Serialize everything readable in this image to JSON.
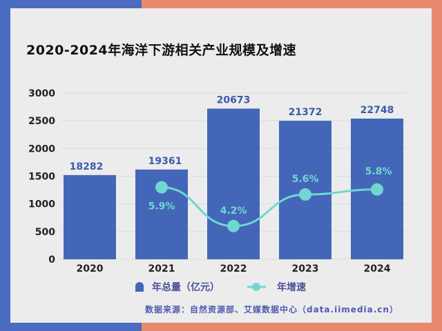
{
  "title": "2020-2024年海洋下游相关产业规模及增速",
  "source": "数据来源：自然资源部、艾媒数据中心（data.iimedia.cn）",
  "colors": {
    "bar": "#4466b8",
    "line": "#6fd8d0",
    "bg_left": "#4a6bbf",
    "bg_right": "#e8896d",
    "card": "#ececec"
  },
  "chart_data": {
    "type": "bar+line",
    "title": "2020-2024年海洋下游相关产业规模及增速",
    "categories": [
      "2020",
      "2021",
      "2022",
      "2023",
      "2024"
    ],
    "ylim": [
      0,
      3000
    ],
    "yticks": [
      "0",
      "500",
      "1000",
      "1500",
      "2000",
      "2500",
      "3000"
    ],
    "grid": true,
    "legend_position": "bottom",
    "series": [
      {
        "name": "年总量（亿元）",
        "type": "bar",
        "labels": [
          "18282",
          "19361",
          "20673",
          "21372",
          "22748"
        ],
        "plotted_axis_values": [
          1520,
          1620,
          2720,
          2500,
          2540
        ]
      },
      {
        "name": "年增速",
        "type": "line",
        "smooth": true,
        "labels": [
          null,
          "5.9%",
          "4.2%",
          "5.6%",
          "5.8%"
        ],
        "plotted_axis_values": [
          null,
          1300,
          600,
          1170,
          1260
        ]
      }
    ]
  }
}
